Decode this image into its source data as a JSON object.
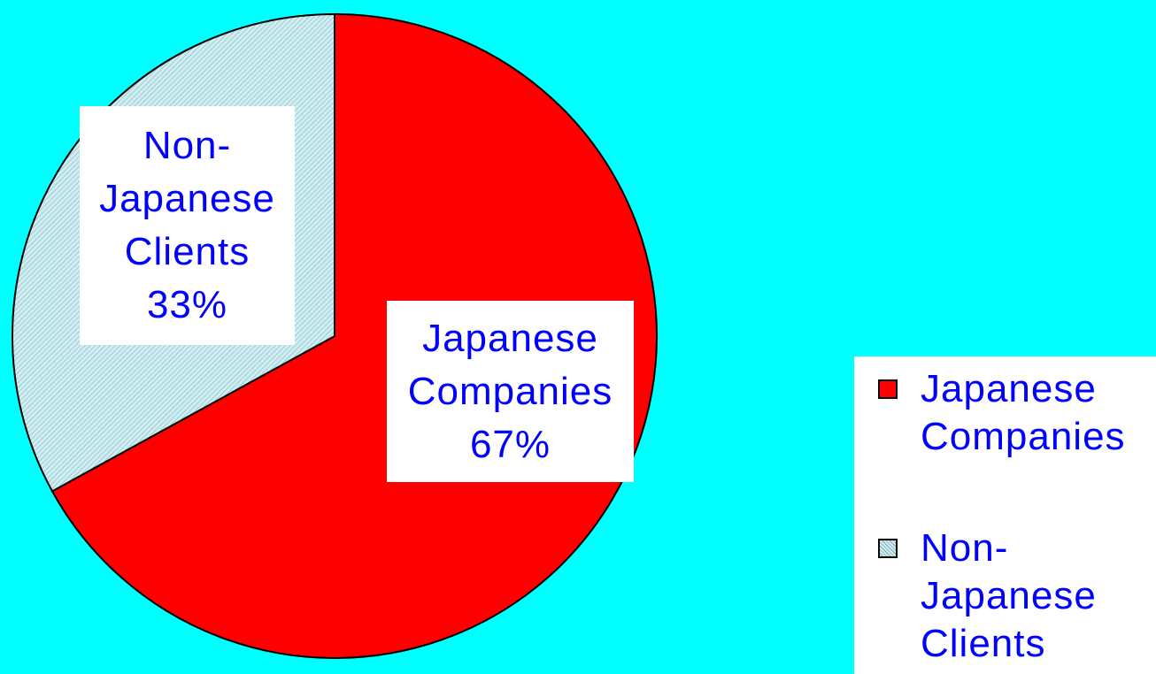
{
  "chart_data": {
    "type": "pie",
    "categories": [
      "Japanese Companies",
      "Non-Japanese Clients"
    ],
    "values": [
      67,
      33
    ],
    "value_labels": [
      "67%",
      "33%"
    ],
    "colors": [
      "#ff0000",
      "#cdeef2"
    ],
    "legend": "right"
  }
}
